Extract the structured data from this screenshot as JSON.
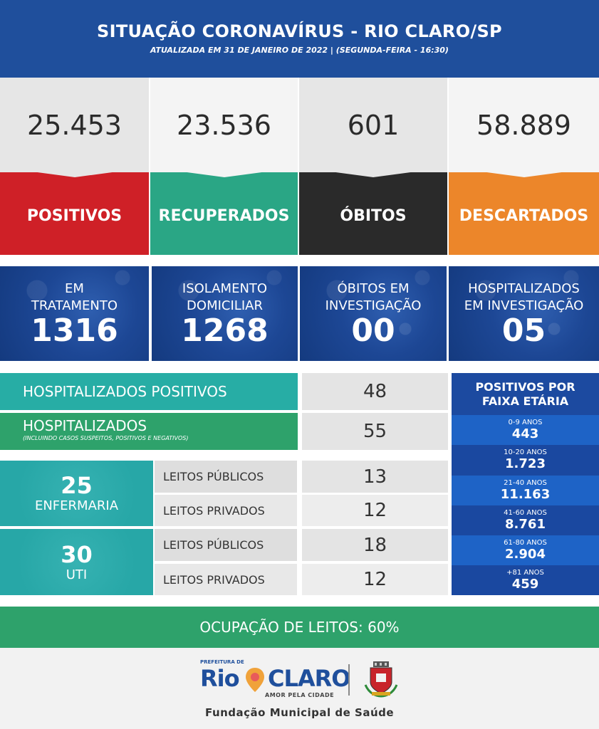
{
  "header": {
    "title": "SITUAÇÃO CORONAVÍRUS - RIO CLARO/SP",
    "subtitle": "ATUALIZADA EM 31 DE JANEIRO DE 2022 | (SEGUNDA-FEIRA - 16:30)"
  },
  "summary": [
    {
      "value": "25.453",
      "label": "POSITIVOS",
      "color": "#cf2027"
    },
    {
      "value": "23.536",
      "label": "RECUPERADOS",
      "color": "#2aa685"
    },
    {
      "value": "601",
      "label": "ÓBITOS",
      "color": "#2a2a2a"
    },
    {
      "value": "58.889",
      "label": "DESCARTADOS",
      "color": "#ec862a"
    }
  ],
  "status": [
    {
      "line1": "EM",
      "line2": "TRATAMENTO",
      "value": "1316"
    },
    {
      "line1": "ISOLAMENTO",
      "line2": "DOMICILIAR",
      "value": "1268"
    },
    {
      "line1": "ÓBITOS EM",
      "line2": "INVESTIGAÇÃO",
      "value": "00"
    },
    {
      "line1": "HOSPITALIZADOS",
      "line2": "EM INVESTIGAÇÃO",
      "value": "05"
    }
  ],
  "hospital": {
    "positivos_label": "HOSPITALIZADOS POSITIVOS",
    "positivos_value": "48",
    "total_label": "HOSPITALIZADOS",
    "total_note": "(INCLUINDO CASOS SUSPEITOS, POSITIVOS E NEGATIVOS)",
    "total_value": "55",
    "enfermaria": {
      "count": "25",
      "label": "ENFERMARIA",
      "publicos_label": "LEITOS PÚBLICOS",
      "publicos_value": "13",
      "privados_label": "LEITOS PRIVADOS",
      "privados_value": "12"
    },
    "uti": {
      "count": "30",
      "label": "UTI",
      "publicos_label": "LEITOS PÚBLICOS",
      "publicos_value": "18",
      "privados_label": "LEITOS PRIVADOS",
      "privados_value": "12"
    }
  },
  "age": {
    "title_line1": "POSITIVOS POR",
    "title_line2": "FAIXA ETÁRIA",
    "groups": [
      {
        "label": "0-9 ANOS",
        "value": "443"
      },
      {
        "label": "10-20 ANOS",
        "value": "1.723"
      },
      {
        "label": "21-40 ANOS",
        "value": "11.163"
      },
      {
        "label": "41-60 ANOS",
        "value": "8.761"
      },
      {
        "label": "61-80 ANOS",
        "value": "2.904"
      },
      {
        "label": "+81 ANOS",
        "value": "459"
      }
    ]
  },
  "occupancy": "OCUPAÇÃO DE LEITOS: 60%",
  "footer": {
    "logo_top": "PREFEITURA DE",
    "logo_rio": "Rio",
    "logo_claro": "CLARO",
    "logo_tagline": "AMOR PELA CIDADE",
    "foundation": "Fundação Municipal de Saúde"
  }
}
